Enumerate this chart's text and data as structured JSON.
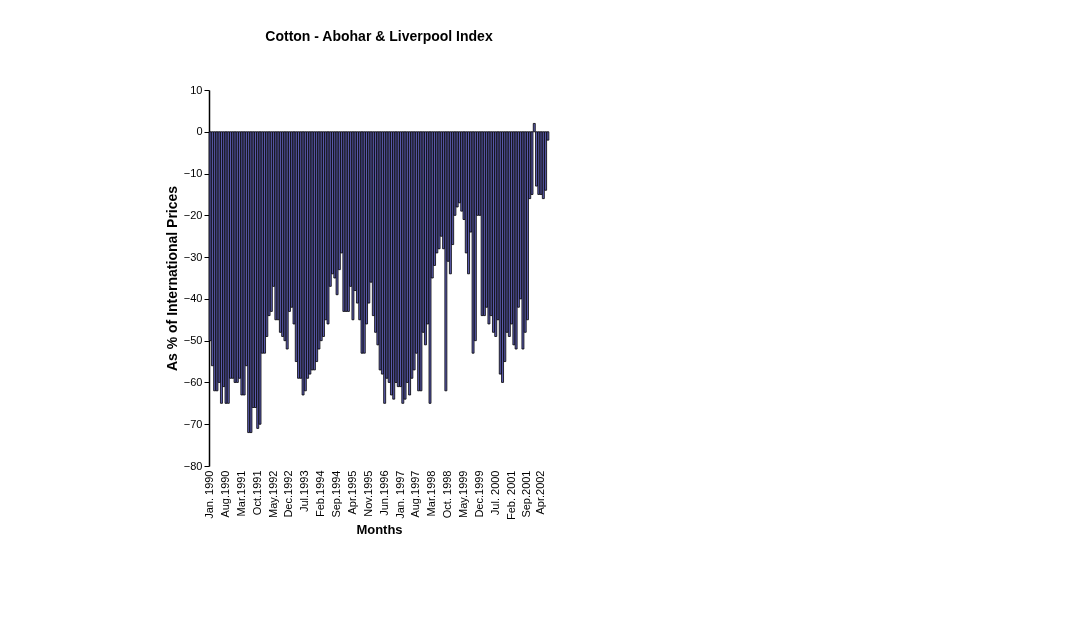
{
  "chart_data": {
    "type": "bar",
    "title": "Cotton - Abohar & Liverpool Index",
    "xlabel": "Months",
    "ylabel": "As % of International Prices",
    "categories": [
      "Jan. 1990",
      null,
      null,
      null,
      null,
      null,
      null,
      "Aug.1990",
      null,
      null,
      null,
      null,
      null,
      null,
      "Mar.1991",
      null,
      null,
      null,
      null,
      null,
      null,
      "Oct.1991",
      null,
      null,
      null,
      null,
      null,
      null,
      "May.1992",
      null,
      null,
      null,
      null,
      null,
      null,
      "Dec.1992",
      null,
      null,
      null,
      null,
      null,
      null,
      "Jul.1993",
      null,
      null,
      null,
      null,
      null,
      null,
      "Feb.1994",
      null,
      null,
      null,
      null,
      null,
      null,
      "Sep.1994",
      null,
      null,
      null,
      null,
      null,
      null,
      "Apr.1995",
      null,
      null,
      null,
      null,
      null,
      null,
      "Nov.1995",
      null,
      null,
      null,
      null,
      null,
      null,
      "Jun.1996",
      null,
      null,
      null,
      null,
      null,
      null,
      "Jan. 1997",
      null,
      null,
      null,
      null,
      null,
      null,
      "Aug.1997",
      null,
      null,
      null,
      null,
      null,
      null,
      "Mar.1998",
      null,
      null,
      null,
      null,
      null,
      null,
      "Oct. 1998",
      null,
      null,
      null,
      null,
      null,
      null,
      "May.1999",
      null,
      null,
      null,
      null,
      null,
      null,
      "Dec.1999",
      null,
      null,
      null,
      null,
      null,
      null,
      "Jul. 2000",
      null,
      null,
      null,
      null,
      null,
      null,
      "Feb. 2001",
      null,
      null,
      null,
      null,
      null,
      null,
      "Sep.2001",
      null,
      null,
      null,
      null,
      null,
      null,
      "Apr.2002",
      null,
      null,
      null
    ],
    "values": [
      -50,
      -56,
      -62,
      -62,
      -60,
      -65,
      -61,
      -65,
      -65,
      -59,
      -59,
      -60,
      -60,
      -59,
      -63,
      -63,
      -56,
      -72,
      -72,
      -66,
      -66,
      -71,
      -70,
      -53,
      -53,
      -49,
      -44,
      -43,
      -37,
      -45,
      -45,
      -48,
      -49,
      -50,
      -52,
      -43,
      -42,
      -46,
      -55,
      -59,
      -59,
      -63,
      -62,
      -59,
      -58,
      -57,
      -57,
      -55,
      -52,
      -50,
      -49,
      -45,
      -46,
      -37,
      -34,
      -35,
      -39,
      -33,
      -29,
      -43,
      -43,
      -43,
      -37,
      -45,
      -38,
      -41,
      -45,
      -53,
      -53,
      -46,
      -41,
      -36,
      -44,
      -48,
      -51,
      -57,
      -58,
      -65,
      -59,
      -60,
      -63,
      -64,
      -60,
      -61,
      -61,
      -65,
      -64,
      -60,
      -63,
      -59,
      -57,
      -53,
      -62,
      -62,
      -48,
      -51,
      -46,
      -65,
      -35,
      -32,
      -29,
      -28,
      -25,
      -28,
      -62,
      -31,
      -34,
      -27,
      -20,
      -18,
      -17,
      -19,
      -21,
      -29,
      -34,
      -24,
      -53,
      -50,
      -20,
      -20,
      -44,
      -44,
      -42,
      -46,
      -44,
      -48,
      -49,
      -45,
      -58,
      -60,
      -55,
      -48,
      -49,
      -46,
      -51,
      -52,
      -42,
      -40,
      -52,
      -48,
      -45,
      -16,
      -15,
      null,
      2,
      -13,
      -15,
      -15,
      -16,
      -14,
      -2
    ],
    "color": "#5c5cb0",
    "ylim": [
      -80,
      10
    ],
    "yticks": [
      -80,
      -70,
      -60,
      -50,
      -40,
      -30,
      -20,
      -10,
      0,
      10
    ],
    "grid": false
  }
}
